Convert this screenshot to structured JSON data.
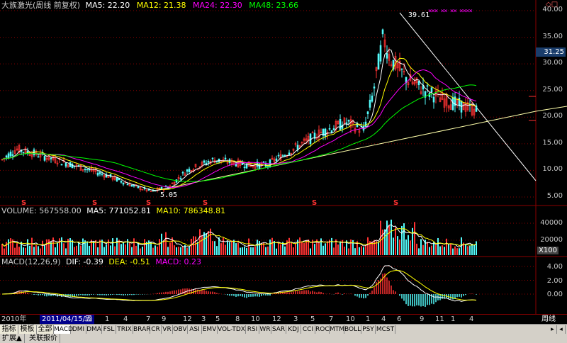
{
  "header": {
    "title": "大族激光(周线 前复权)",
    "ma5": "MA5: 22.20",
    "ma12": "MA12: 21.38",
    "ma24": "MA24: 22.30",
    "ma48": "MA48: 23.66",
    "corner_icons": "◇□"
  },
  "price_axis": {
    "labels": [
      "40.00",
      "35.00",
      "30.00",
      "25.00",
      "20.00",
      "15.00",
      "10.00",
      "5.00"
    ],
    "current_price": "31.25",
    "high_label": "39.61",
    "low_label": "5.05",
    "marks": "××× ×× ×× ××××",
    "s_mark": "S"
  },
  "volume": {
    "header_volume": "VOLUME: 567558.00",
    "header_ma5": "MA5: 771052.81",
    "header_ma10": "MA10: 786348.81",
    "labels": [
      "40000",
      "20000"
    ],
    "unit": "X100"
  },
  "macd": {
    "header_name": "MACD(12,26,9)",
    "header_dif": "DIF: -0.39",
    "header_dea": "DEA: -0.51",
    "header_macd": "MACD: 0.23",
    "labels": [
      "4.00",
      "2.00",
      "0.00"
    ]
  },
  "timeline": {
    "year": "2010年",
    "selected_date": "2011/04/15/五",
    "ticks": [
      "10",
      "1",
      "4",
      "7",
      "9",
      "12",
      "3",
      "5",
      "8",
      "10",
      "12",
      "3",
      "5",
      "7",
      "10",
      "1",
      "4",
      "6",
      "9",
      "11",
      "1",
      "4"
    ],
    "period": "周线"
  },
  "tabs": {
    "left": [
      "指标",
      "模板",
      "全部"
    ],
    "indicators": [
      "MACD",
      "DMI",
      "DMA",
      "FSL",
      "TRIX",
      "BRAR",
      "CR",
      "VR",
      "OBV",
      "ASI",
      "EMV",
      "VOL-TDX",
      "RSI",
      "WR",
      "SAR",
      "KDJ",
      "CCI",
      "ROC",
      "MTM",
      "BOLL",
      "PSY",
      "MCST"
    ]
  },
  "statusbar": {
    "items": [
      "扩展▲",
      "关联报价"
    ]
  },
  "colors": {
    "ma5": "#ffffff",
    "ma12": "#ffff00",
    "ma24": "#ff00ff",
    "ma48": "#00ff00",
    "up": "#ff3232",
    "down": "#54fcfc"
  }
}
